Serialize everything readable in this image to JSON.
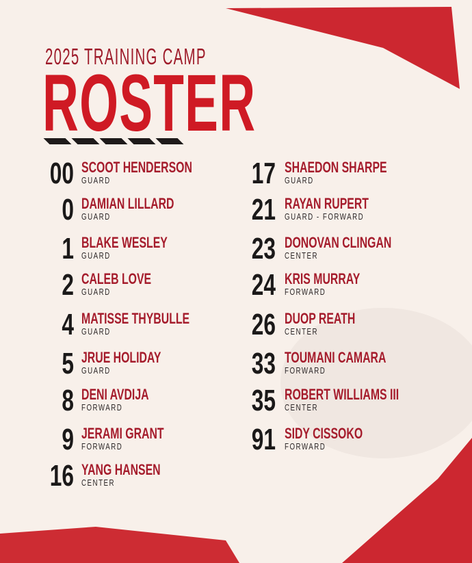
{
  "header": {
    "subtitle": "2025 TRAINING CAMP",
    "title": "ROSTER"
  },
  "colors": {
    "accent": "#cf1a24",
    "name": "#a51c2c",
    "number": "#1b1919",
    "background": "#f8f0ea"
  },
  "left": [
    {
      "number": "00",
      "name": "SCOOT HENDERSON",
      "position": "GUARD"
    },
    {
      "number": "0",
      "name": "DAMIAN LILLARD",
      "position": "GUARD"
    },
    {
      "number": "1",
      "name": "BLAKE WESLEY",
      "position": "GUARD"
    },
    {
      "number": "2",
      "name": "CALEB LOVE",
      "position": "GUARD"
    },
    {
      "number": "4",
      "name": "MATISSE THYBULLE",
      "position": "GUARD"
    },
    {
      "number": "5",
      "name": "JRUE HOLIDAY",
      "position": "GUARD"
    },
    {
      "number": "8",
      "name": "DENI AVDIJA",
      "position": "FORWARD"
    },
    {
      "number": "9",
      "name": "JERAMI GRANT",
      "position": "FORWARD"
    },
    {
      "number": "16",
      "name": "YANG HANSEN",
      "position": "CENTER"
    }
  ],
  "right": [
    {
      "number": "17",
      "name": "SHAEDON SHARPE",
      "position": "GUARD"
    },
    {
      "number": "21",
      "name": "RAYAN RUPERT",
      "position": "GUARD - FORWARD"
    },
    {
      "number": "23",
      "name": "DONOVAN CLINGAN",
      "position": "CENTER"
    },
    {
      "number": "24",
      "name": "KRIS MURRAY",
      "position": "FORWARD"
    },
    {
      "number": "26",
      "name": "DUOP REATH",
      "position": "CENTER"
    },
    {
      "number": "33",
      "name": "TOUMANI CAMARA",
      "position": "FORWARD"
    },
    {
      "number": "35",
      "name": "ROBERT WILLIAMS III",
      "position": "CENTER"
    },
    {
      "number": "91",
      "name": "SIDY CISSOKO",
      "position": "FORWARD"
    }
  ]
}
